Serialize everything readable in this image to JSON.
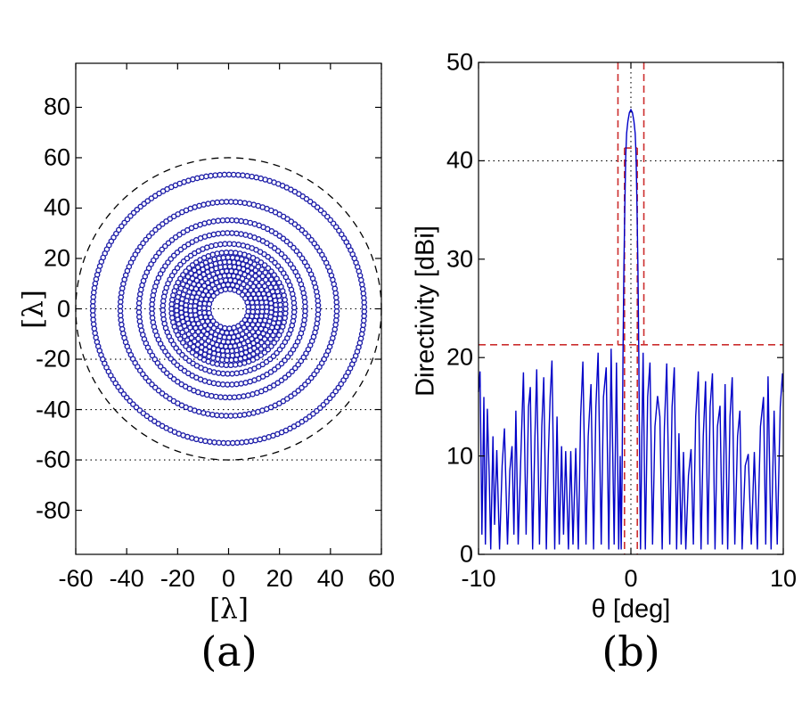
{
  "figure": {
    "background": "#ffffff"
  },
  "chart_data": [
    {
      "id": "array-layout",
      "type": "scatter",
      "caption": "(a)",
      "xlabel": "[λ]",
      "ylabel": "[λ]",
      "xlim": [
        -60,
        60
      ],
      "ylim": [
        -97.5,
        97.5
      ],
      "xticks": [
        -60,
        -40,
        -20,
        0,
        20,
        40,
        60
      ],
      "yticks": [
        -80,
        -60,
        -40,
        -20,
        0,
        20,
        40,
        60,
        80
      ],
      "dotted_hlines": [
        0,
        -20,
        -40,
        -60
      ],
      "dotted_vlines": [
        60
      ],
      "boundary_circle": {
        "radius_lambda": 60,
        "color": "#000000",
        "style": "dashed"
      },
      "marker": {
        "shape": "open-circle",
        "radius_lambda": 0.92,
        "stroke": "#1c1ca8",
        "fill": "#ffffff"
      },
      "rings": [
        {
          "r": 7.8,
          "n": 27,
          "phase": 0.1
        },
        {
          "r": 9.6,
          "n": 33,
          "phase": 0.45
        },
        {
          "r": 11.4,
          "n": 39,
          "phase": 0.22
        },
        {
          "r": 13.2,
          "n": 46,
          "phase": 0.6
        },
        {
          "r": 15.0,
          "n": 52,
          "phase": 0.05
        },
        {
          "r": 16.8,
          "n": 58,
          "phase": 0.35
        },
        {
          "r": 18.6,
          "n": 64,
          "phase": 0.18
        },
        {
          "r": 20.4,
          "n": 71,
          "phase": 0.52
        },
        {
          "r": 22.4,
          "n": 78,
          "phase": 0.08
        },
        {
          "r": 25.8,
          "n": 90,
          "phase": 0.3
        },
        {
          "r": 30.1,
          "n": 105,
          "phase": 0.15
        },
        {
          "r": 35.2,
          "n": 122,
          "phase": 0.4
        },
        {
          "r": 42.5,
          "n": 148,
          "phase": 0.02
        },
        {
          "r": 53.3,
          "n": 186,
          "phase": 0.25
        }
      ]
    },
    {
      "id": "directivity-pattern",
      "type": "line",
      "caption": "(b)",
      "xlabel": "θ [deg]",
      "ylabel": "Directivity [dBi]",
      "xlim": [
        -10,
        10
      ],
      "ylim": [
        0,
        50
      ],
      "xticks": [
        -10,
        0,
        10
      ],
      "yticks": [
        0,
        10,
        20,
        30,
        40,
        50
      ],
      "dotted_hlines": [
        40
      ],
      "dotted_vlines": [
        0
      ],
      "mask": {
        "color": "#cc2e2e",
        "sll_level_dbi": 21.3,
        "outer_wall_deg": 0.85,
        "inner_wall_deg": 0.42,
        "inner_top_dbi": 41.3
      },
      "readouts": {
        "peak_dbi": 45.2,
        "peak_theta_deg": 0,
        "sidelobe_mask_dbi": 21.3
      },
      "series": [
        {
          "name": "directivity",
          "color": "#0000c8",
          "points": [
            [
              -10,
              16.5
            ],
            [
              -9.9,
              18.6
            ],
            [
              -9.78,
              2
            ],
            [
              -9.65,
              16
            ],
            [
              -9.55,
              1
            ],
            [
              -9.42,
              14.8
            ],
            [
              -9.3,
              8
            ],
            [
              -9.2,
              0.5
            ],
            [
              -9.05,
              12
            ],
            [
              -8.95,
              3
            ],
            [
              -8.8,
              10.6
            ],
            [
              -8.62,
              0.5
            ],
            [
              -8.45,
              9
            ],
            [
              -8.3,
              12.8
            ],
            [
              -8.1,
              1
            ],
            [
              -7.95,
              8.5
            ],
            [
              -7.8,
              11
            ],
            [
              -7.68,
              2
            ],
            [
              -7.55,
              14.6
            ],
            [
              -7.4,
              1
            ],
            [
              -7.22,
              10
            ],
            [
              -7.05,
              18.5
            ],
            [
              -6.88,
              2
            ],
            [
              -6.72,
              15
            ],
            [
              -6.6,
              17
            ],
            [
              -6.45,
              0.5
            ],
            [
              -6.3,
              12
            ],
            [
              -6.18,
              18.8
            ],
            [
              -6.0,
              1
            ],
            [
              -5.85,
              13
            ],
            [
              -5.72,
              18
            ],
            [
              -5.55,
              0.5
            ],
            [
              -5.42,
              10
            ],
            [
              -5.3,
              16
            ],
            [
              -5.18,
              19.7
            ],
            [
              -5.0,
              0.5
            ],
            [
              -4.85,
              14
            ],
            [
              -4.7,
              1
            ],
            [
              -4.55,
              11
            ],
            [
              -4.42,
              2
            ],
            [
              -4.28,
              10.5
            ],
            [
              -4.1,
              0.5
            ],
            [
              -3.95,
              10.5
            ],
            [
              -3.8,
              1
            ],
            [
              -3.62,
              10.8
            ],
            [
              -3.45,
              0.5
            ],
            [
              -3.3,
              14
            ],
            [
              -3.15,
              19.6
            ],
            [
              -2.95,
              1
            ],
            [
              -2.8,
              12
            ],
            [
              -2.62,
              17.3
            ],
            [
              -2.45,
              0.5
            ],
            [
              -2.3,
              15
            ],
            [
              -2.15,
              20.5
            ],
            [
              -1.95,
              1
            ],
            [
              -1.8,
              16
            ],
            [
              -1.62,
              19
            ],
            [
              -1.45,
              0.5
            ],
            [
              -1.3,
              20.9
            ],
            [
              -1.1,
              1
            ],
            [
              -0.95,
              19.5
            ],
            [
              -0.8,
              0.5
            ],
            [
              -0.7,
              10
            ],
            [
              -0.64,
              0.5
            ],
            [
              -0.58,
              8
            ],
            [
              -0.52,
              20
            ],
            [
              -0.46,
              29
            ],
            [
              -0.4,
              35.5
            ],
            [
              -0.34,
              40.5
            ],
            [
              -0.28,
              42.8
            ],
            [
              -0.2,
              44
            ],
            [
              -0.1,
              44.9
            ],
            [
              0,
              45.2
            ],
            [
              0.1,
              44.9
            ],
            [
              0.2,
              44
            ],
            [
              0.28,
              42.8
            ],
            [
              0.34,
              40.5
            ],
            [
              0.4,
              35.5
            ],
            [
              0.46,
              29
            ],
            [
              0.52,
              20
            ],
            [
              0.58,
              8
            ],
            [
              0.63,
              0.5
            ],
            [
              0.72,
              12
            ],
            [
              0.8,
              20.5
            ],
            [
              0.95,
              0.5
            ],
            [
              1.1,
              16
            ],
            [
              1.25,
              19.5
            ],
            [
              1.42,
              1
            ],
            [
              1.58,
              13
            ],
            [
              1.75,
              16.1
            ],
            [
              1.9,
              14
            ],
            [
              2.05,
              0.5
            ],
            [
              2.2,
              13
            ],
            [
              2.35,
              19.4
            ],
            [
              2.55,
              1
            ],
            [
              2.7,
              15
            ],
            [
              2.85,
              19
            ],
            [
              3.0,
              0.5
            ],
            [
              3.15,
              12.3
            ],
            [
              3.3,
              1
            ],
            [
              3.45,
              10.4
            ],
            [
              3.6,
              0.5
            ],
            [
              3.78,
              8
            ],
            [
              3.95,
              10.7
            ],
            [
              4.1,
              1
            ],
            [
              4.25,
              14
            ],
            [
              4.42,
              18.6
            ],
            [
              4.6,
              0.5
            ],
            [
              4.75,
              12
            ],
            [
              4.9,
              17.6
            ],
            [
              5.05,
              1
            ],
            [
              5.2,
              15
            ],
            [
              5.35,
              18.4
            ],
            [
              5.52,
              0.5
            ],
            [
              5.68,
              13
            ],
            [
              5.85,
              15.1
            ],
            [
              6.0,
              1
            ],
            [
              6.18,
              17.3
            ],
            [
              6.35,
              0.5
            ],
            [
              6.5,
              14
            ],
            [
              6.65,
              18
            ],
            [
              6.82,
              1
            ],
            [
              7.0,
              12
            ],
            [
              7.15,
              14.6
            ],
            [
              7.3,
              0.5
            ],
            [
              7.5,
              9
            ],
            [
              7.7,
              10.2
            ],
            [
              7.9,
              1
            ],
            [
              8.1,
              10.4
            ],
            [
              8.3,
              0.5
            ],
            [
              8.5,
              13
            ],
            [
              8.7,
              16
            ],
            [
              8.85,
              1
            ],
            [
              9.0,
              18.1
            ],
            [
              9.2,
              0.5
            ],
            [
              9.4,
              14.6
            ],
            [
              9.6,
              1
            ],
            [
              9.8,
              15
            ],
            [
              9.95,
              18.4
            ],
            [
              10,
              16.5
            ]
          ]
        }
      ]
    }
  ]
}
